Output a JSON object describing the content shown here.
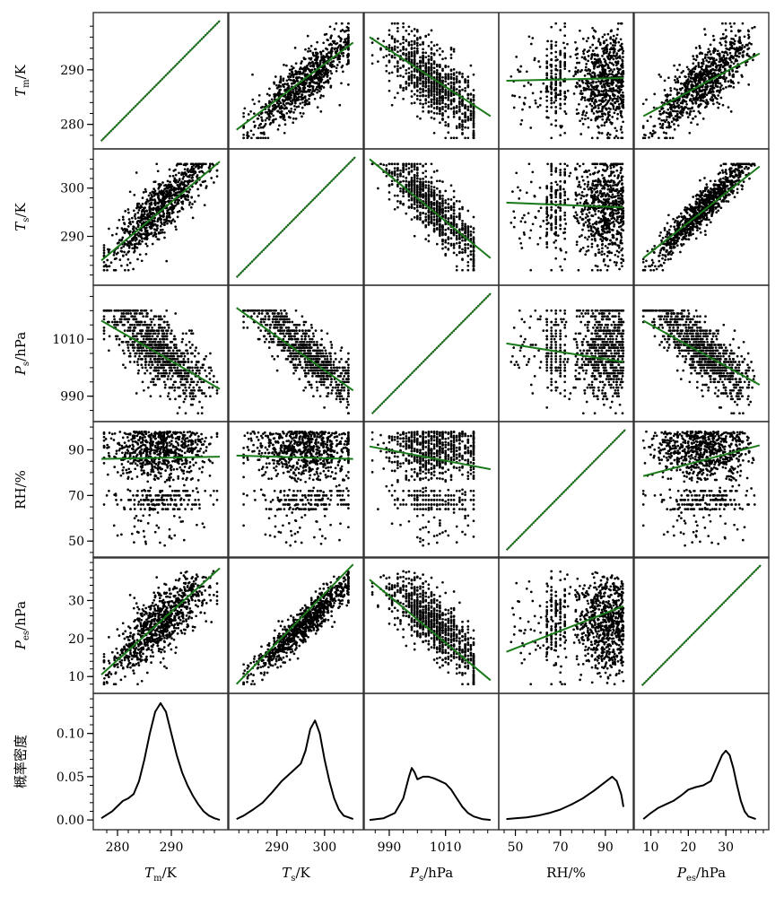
{
  "chart_data": {
    "type": "scatter",
    "layout": "pair-plot matrix, 5 scatter rows plus 1 density row, 5 columns",
    "diagonal": "identity line",
    "fit_line_color": "#1a7a1a",
    "point_color": "#000000",
    "variables": [
      {
        "key": "Tm",
        "label_main": "T",
        "label_sub": "m",
        "unit": "/K",
        "range": [
          276.5,
          299.5
        ],
        "ticks": [
          280,
          290
        ],
        "tick_labels": [
          "280",
          "290"
        ],
        "minor_step": 2
      },
      {
        "key": "Ts",
        "label_main": "T",
        "label_sub": "s",
        "unit": "/K",
        "range": [
          281,
          307
        ],
        "ticks": [
          290,
          300
        ],
        "tick_labels": [
          "290",
          "300"
        ],
        "minor_step": 2
      },
      {
        "key": "Ps",
        "label_main": "P",
        "label_sub": "s",
        "unit": "/hPa",
        "range": [
          983,
          1027
        ],
        "ticks": [
          990,
          1010
        ],
        "tick_labels": [
          "990",
          "1010"
        ],
        "minor_step": 5
      },
      {
        "key": "RH",
        "label_main": "RH/%",
        "label_sub": "",
        "unit": "",
        "range": [
          45,
          100
        ],
        "ticks": [
          50,
          70,
          90
        ],
        "tick_labels": [
          "50",
          "70",
          "90"
        ],
        "minor_step": 5
      },
      {
        "key": "Pes",
        "label_main": "P",
        "label_sub": "es",
        "unit": "/hPa",
        "range": [
          7,
          40
        ],
        "ticks": [
          10,
          20,
          30
        ],
        "tick_labels": [
          "10",
          "20",
          "30"
        ],
        "minor_step": 2
      }
    ],
    "fit_lines": {
      "note": "linear regression lines, [[x_start, y_start], [x_end, y_end]] in data units; row variable vs column variable",
      "Tm": {
        "Ts": [
          [
            281.5,
            279.0
          ],
          [
            306.0,
            295.0
          ]
        ],
        "Ps": [
          [
            983.0,
            296.0
          ],
          [
            1026.0,
            281.5
          ]
        ],
        "RH": [
          [
            46.0,
            288.0
          ],
          [
            98.0,
            288.5
          ]
        ],
        "Pes": [
          [
            8.0,
            281.5
          ],
          [
            39.0,
            293.0
          ]
        ]
      },
      "Ts": {
        "Tm": [
          [
            277.0,
            285.0
          ],
          [
            299.0,
            305.5
          ]
        ],
        "Ps": [
          [
            983.0,
            306.0
          ],
          [
            1026.0,
            285.5
          ]
        ],
        "RH": [
          [
            46.0,
            297.0
          ],
          [
            98.0,
            296.0
          ]
        ],
        "Pes": [
          [
            8.0,
            285.5
          ],
          [
            39.0,
            304.5
          ]
        ]
      },
      "Ps": {
        "Tm": [
          [
            277.0,
            1016.5
          ],
          [
            299.0,
            992.5
          ]
        ],
        "Ts": [
          [
            281.5,
            1021.0
          ],
          [
            306.0,
            992.0
          ]
        ],
        "RH": [
          [
            46.0,
            1008.5
          ],
          [
            98.0,
            1002.0
          ]
        ],
        "Pes": [
          [
            8.0,
            1016.5
          ],
          [
            39.0,
            994.0
          ]
        ]
      },
      "RH": {
        "Tm": [
          [
            277.0,
            86.0
          ],
          [
            299.0,
            87.0
          ]
        ],
        "Ts": [
          [
            281.5,
            87.5
          ],
          [
            306.0,
            86.0
          ]
        ],
        "Ps": [
          [
            983.0,
            91.5
          ],
          [
            1026.0,
            81.5
          ]
        ],
        "Pes": [
          [
            8.0,
            78.5
          ],
          [
            39.0,
            92.0
          ]
        ]
      },
      "Pes": {
        "Tm": [
          [
            277.0,
            10.5
          ],
          [
            299.0,
            38.5
          ]
        ],
        "Ts": [
          [
            281.5,
            8.0
          ],
          [
            306.0,
            39.5
          ]
        ],
        "Ps": [
          [
            983.0,
            35.5
          ],
          [
            1026.0,
            9.0
          ]
        ],
        "RH": [
          [
            46.0,
            16.5
          ],
          [
            98.0,
            28.5
          ]
        ]
      }
    },
    "density": {
      "ylabel": "概率密度",
      "ylim": [
        -0.005,
        0.14
      ],
      "yticks": [
        0.0,
        0.05,
        0.1
      ],
      "ytick_labels": [
        "0.00",
        "0.05",
        "0.10"
      ],
      "curves": {
        "Tm": [
          [
            277,
            0.002
          ],
          [
            279,
            0.01
          ],
          [
            281,
            0.022
          ],
          [
            282,
            0.025
          ],
          [
            283,
            0.03
          ],
          [
            284,
            0.045
          ],
          [
            285,
            0.07
          ],
          [
            286,
            0.1
          ],
          [
            287,
            0.125
          ],
          [
            288,
            0.135
          ],
          [
            289,
            0.125
          ],
          [
            290,
            0.1
          ],
          [
            291,
            0.075
          ],
          [
            292,
            0.055
          ],
          [
            293,
            0.04
          ],
          [
            294,
            0.028
          ],
          [
            295,
            0.018
          ],
          [
            296,
            0.01
          ],
          [
            297,
            0.005
          ],
          [
            298,
            0.002
          ],
          [
            299,
            0.0
          ]
        ],
        "Ts": [
          [
            281.5,
            0.001
          ],
          [
            283,
            0.005
          ],
          [
            285,
            0.012
          ],
          [
            287,
            0.02
          ],
          [
            289,
            0.032
          ],
          [
            291,
            0.045
          ],
          [
            293,
            0.055
          ],
          [
            295,
            0.065
          ],
          [
            296,
            0.08
          ],
          [
            297,
            0.105
          ],
          [
            298,
            0.115
          ],
          [
            299,
            0.1
          ],
          [
            300,
            0.07
          ],
          [
            301,
            0.045
          ],
          [
            302,
            0.025
          ],
          [
            303,
            0.012
          ],
          [
            304,
            0.005
          ],
          [
            306,
            0.001
          ]
        ],
        "Ps": [
          [
            983,
            0.0
          ],
          [
            988,
            0.002
          ],
          [
            992,
            0.008
          ],
          [
            995,
            0.025
          ],
          [
            997,
            0.05
          ],
          [
            998,
            0.06
          ],
          [
            999,
            0.055
          ],
          [
            1000,
            0.047
          ],
          [
            1002,
            0.05
          ],
          [
            1004,
            0.05
          ],
          [
            1006,
            0.048
          ],
          [
            1008,
            0.045
          ],
          [
            1010,
            0.042
          ],
          [
            1012,
            0.035
          ],
          [
            1014,
            0.025
          ],
          [
            1016,
            0.015
          ],
          [
            1018,
            0.008
          ],
          [
            1020,
            0.004
          ],
          [
            1023,
            0.001
          ],
          [
            1026,
            0.0
          ]
        ],
        "RH": [
          [
            46,
            0.001
          ],
          [
            50,
            0.002
          ],
          [
            55,
            0.003
          ],
          [
            60,
            0.005
          ],
          [
            65,
            0.008
          ],
          [
            70,
            0.012
          ],
          [
            75,
            0.018
          ],
          [
            80,
            0.025
          ],
          [
            85,
            0.034
          ],
          [
            90,
            0.044
          ],
          [
            93,
            0.05
          ],
          [
            95,
            0.045
          ],
          [
            97,
            0.03
          ],
          [
            98,
            0.015
          ]
        ],
        "Pes": [
          [
            8,
            0.001
          ],
          [
            10,
            0.008
          ],
          [
            12,
            0.014
          ],
          [
            14,
            0.018
          ],
          [
            16,
            0.022
          ],
          [
            18,
            0.028
          ],
          [
            20,
            0.035
          ],
          [
            22,
            0.038
          ],
          [
            24,
            0.04
          ],
          [
            26,
            0.045
          ],
          [
            27,
            0.055
          ],
          [
            28,
            0.065
          ],
          [
            29,
            0.075
          ],
          [
            30,
            0.08
          ],
          [
            31,
            0.075
          ],
          [
            32,
            0.06
          ],
          [
            33,
            0.04
          ],
          [
            34,
            0.022
          ],
          [
            35,
            0.01
          ],
          [
            36,
            0.004
          ],
          [
            38,
            0.001
          ]
        ]
      }
    }
  }
}
